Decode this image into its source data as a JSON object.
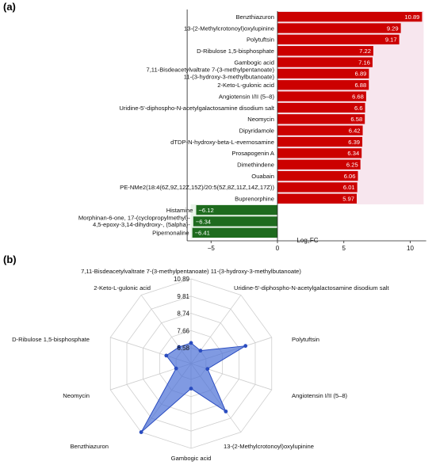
{
  "panels": {
    "a": "(a)",
    "b": "(b)"
  },
  "colors": {
    "positive_bar": "#cc0000",
    "negative_bar": "#1e6b1e",
    "positive_band": "#f7e6ee",
    "negative_band": "#eaf4ea",
    "radar_fill": "#4a6fd6",
    "radar_stroke": "#2a4cc0"
  },
  "chart_data": [
    {
      "type": "bar",
      "orientation": "horizontal",
      "xlabel": "Log₂FC",
      "xlim": [
        -6.8,
        11.2
      ],
      "xticks": [
        -5,
        0,
        5,
        10
      ],
      "grid": false,
      "categories": [
        "Benzthiazuron",
        "13-(2-Methylcrotonoyl)oxylupinine",
        "Polytuftsin",
        "D-Ribulose 1,5-bisphosphate",
        "Gambogic acid",
        "7,11-Bisdeacetylvaltrate 7-(3-methylpentanoate) 11-(3-hydroxy-3-methylbutanoate)",
        "2-Keto-L-gulonic acid",
        "Angiotensin I/II (5–8)",
        "Uridine-5'-diphospho-N-acetylgalactosamine disodium salt",
        "Neomycin",
        "Dipyridamole",
        "dTDP-N-hydroxy-beta-L-evernosamine",
        "Prosapogenin A",
        "Dimethindene",
        "Ouabain",
        "PE-NMe2(18:4(6Z,9Z,12Z,15Z)/20:5(5Z,8Z,11Z,14Z,17Z))",
        "Buprenorphine",
        "Histamine",
        "Morphinan-6-one, 17-(cyclopropylmethyl)-4,5-epoxy-3,14-dihydroxy-, (5alpha)-",
        "Pipernonaline"
      ],
      "values": [
        10.89,
        9.29,
        9.17,
        7.22,
        7.16,
        6.89,
        6.88,
        6.68,
        6.6,
        6.58,
        6.42,
        6.39,
        6.34,
        6.25,
        6.06,
        6.01,
        5.97,
        -6.12,
        -6.34,
        -6.41
      ],
      "value_labels": [
        "10.89",
        "9.29",
        "9.17",
        "7.22",
        "7.16",
        "6.89",
        "6.88",
        "6.68",
        "6.6",
        "6.58",
        "6.42",
        "6.39",
        "6.34",
        "6.25",
        "6.06",
        "6.01",
        "5.97",
        "−6.12",
        "−6.34",
        "−6.41"
      ]
    },
    {
      "type": "radar",
      "axes": [
        "7,11-Bisdeacetylvaltrate 7-(3-methylpentanoate) 11-(3-hydroxy-3-methylbutanoate)",
        "Uridine-5'-diphospho-N-acetylgalactosamine disodium salt",
        "Polytuftsin",
        "Angiotensin I/II (5–8)",
        "13-(2-Methylcrotonoyl)oxylupinine",
        "Gambogic acid",
        "Benzthiazuron",
        "Neomycin",
        "D-Ribulose 1,5-bisphosphate",
        "2-Keto-L-gulonic acid"
      ],
      "values": [
        6.89,
        6.6,
        9.17,
        6.68,
        9.29,
        7.16,
        10.89,
        6.58,
        7.22,
        6.88
      ],
      "rlim": [
        5.6,
        10.89
      ],
      "rticks": [
        6.58,
        7.66,
        8.74,
        9.81,
        10.89
      ],
      "rtick_labels": [
        "6.58",
        "7.66",
        "8.74",
        "9.81",
        "10.89"
      ]
    }
  ]
}
